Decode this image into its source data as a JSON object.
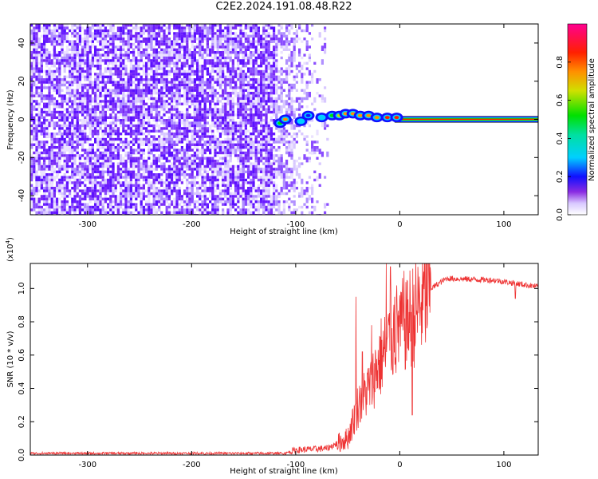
{
  "title": "C2E2.2024.191.08.48.R22",
  "chart_data": [
    {
      "type": "heatmap",
      "title": "",
      "xlabel": "Height of straight line (km)",
      "ylabel": "Frequency (Hz)",
      "xlim": [
        -355,
        133
      ],
      "ylim": [
        -50,
        50
      ],
      "x_ticks": [
        -300,
        -200,
        -100,
        0,
        100
      ],
      "y_ticks": [
        -40,
        -20,
        0,
        20,
        40
      ],
      "noise_region_x": [
        -355,
        -75
      ],
      "signal_line": {
        "x_start": -5,
        "x_end": 133,
        "frequency": 0
      },
      "signal_blobs": [
        {
          "x": -115,
          "y": -2,
          "v": 0.5
        },
        {
          "x": -110,
          "y": 0,
          "v": 0.7
        },
        {
          "x": -95,
          "y": -1,
          "v": 0.4
        },
        {
          "x": -88,
          "y": 2,
          "v": 0.35
        },
        {
          "x": -75,
          "y": 1,
          "v": 0.45
        },
        {
          "x": -65,
          "y": 2,
          "v": 0.55
        },
        {
          "x": -58,
          "y": 2,
          "v": 0.6
        },
        {
          "x": -52,
          "y": 3,
          "v": 0.7
        },
        {
          "x": -45,
          "y": 3,
          "v": 0.75
        },
        {
          "x": -38,
          "y": 2,
          "v": 0.8
        },
        {
          "x": -30,
          "y": 2,
          "v": 0.75
        },
        {
          "x": -22,
          "y": 1,
          "v": 0.8
        },
        {
          "x": -12,
          "y": 1,
          "v": 0.85
        },
        {
          "x": -3,
          "y": 1,
          "v": 0.9
        }
      ],
      "colorbar": {
        "label": "Normalized spectral amplitude",
        "ticks": [
          0.0,
          0.2,
          0.4,
          0.6,
          0.8
        ],
        "range": [
          0,
          1
        ]
      }
    },
    {
      "type": "line",
      "title": "",
      "xlabel": "Height of straight line (km)",
      "ylabel": "SNR (10 * v/v)",
      "y_multiplier": "(x10",
      "y_multiplier_exp": "4",
      "xlim": [
        -355,
        133
      ],
      "ylim": [
        0,
        1.15
      ],
      "x_ticks": [
        -300,
        -200,
        -100,
        0,
        100
      ],
      "y_ticks": [
        0.0,
        0.2,
        0.4,
        0.6,
        0.8,
        1.0
      ],
      "series_color": "#ee3333",
      "profile": [
        {
          "x": -355,
          "y": 0.01
        },
        {
          "x": -110,
          "y": 0.01
        },
        {
          "x": -100,
          "y": 0.03
        },
        {
          "x": -70,
          "y": 0.04
        },
        {
          "x": -50,
          "y": 0.1
        },
        {
          "x": -40,
          "y": 0.3
        },
        {
          "x": -30,
          "y": 0.4
        },
        {
          "x": -20,
          "y": 0.55
        },
        {
          "x": -10,
          "y": 0.68
        },
        {
          "x": 0,
          "y": 0.78
        },
        {
          "x": 10,
          "y": 0.82
        },
        {
          "x": 20,
          "y": 0.9
        },
        {
          "x": 30,
          "y": 1.0
        },
        {
          "x": 45,
          "y": 1.06
        },
        {
          "x": 90,
          "y": 1.05
        },
        {
          "x": 133,
          "y": 1.01
        }
      ],
      "spikes": [
        {
          "x": -42,
          "y": 0.95
        },
        {
          "x": -36,
          "y": 0.62
        },
        {
          "x": -27,
          "y": 0.78
        },
        {
          "x": -18,
          "y": 0.82
        },
        {
          "x": -13,
          "y": 1.15
        },
        {
          "x": -9,
          "y": 1.13
        },
        {
          "x": -5,
          "y": 0.95
        },
        {
          "x": 1,
          "y": 0.98
        },
        {
          "x": 7,
          "y": 1.05
        },
        {
          "x": 12,
          "y": 0.24
        },
        {
          "x": 111,
          "y": 0.94
        }
      ]
    }
  ]
}
